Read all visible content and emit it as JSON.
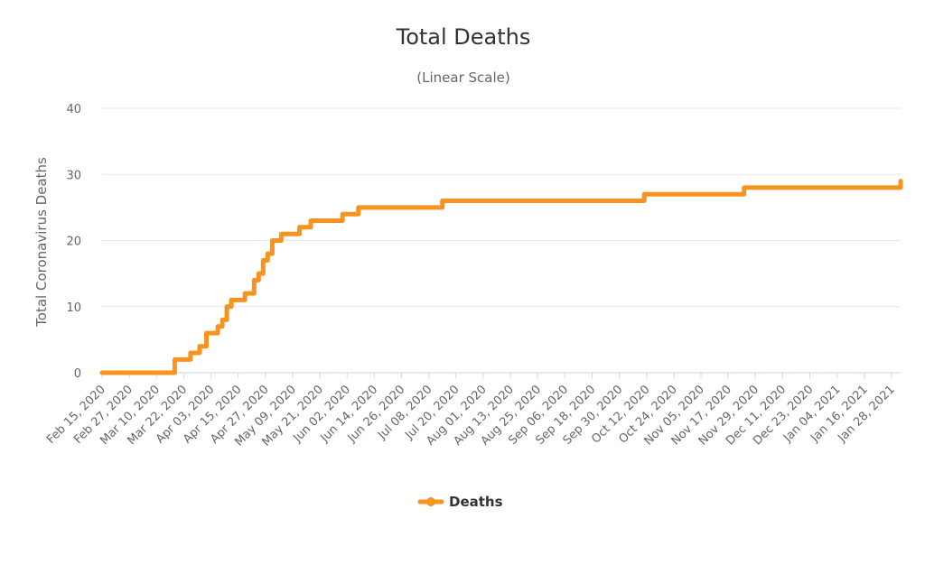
{
  "chart_data": {
    "type": "line",
    "title": "Total Deaths",
    "subtitle": "(Linear Scale)",
    "ylabel": "Total Coronavirus Deaths",
    "xlabel": "",
    "ylim": [
      0,
      40
    ],
    "yticks": [
      0,
      10,
      20,
      30,
      40
    ],
    "grid": true,
    "legend_position": "bottom-center",
    "x_tick_labels": [
      "Feb 15, 2020",
      "Feb 27, 2020",
      "Mar 10, 2020",
      "Mar 22, 2020",
      "Apr 03, 2020",
      "Apr 15, 2020",
      "Apr 27, 2020",
      "May 09, 2020",
      "May 21, 2020",
      "Jun 02, 2020",
      "Jun 14, 2020",
      "Jun 26, 2020",
      "Jul 08, 2020",
      "Jul 20, 2020",
      "Aug 01, 2020",
      "Aug 13, 2020",
      "Aug 25, 2020",
      "Sep 06, 2020",
      "Sep 18, 2020",
      "Sep 30, 2020",
      "Oct 12, 2020",
      "Oct 24, 2020",
      "Nov 05, 2020",
      "Nov 17, 2020",
      "Nov 29, 2020",
      "Dec 11, 2020",
      "Dec 23, 2020",
      "Jan 04, 2021",
      "Jan 16, 2021",
      "Jan 28, 2021"
    ],
    "series": [
      {
        "name": "Deaths",
        "color": "#f7931e",
        "x": [
          "2020-02-15",
          "2020-03-17",
          "2020-03-18",
          "2020-03-24",
          "2020-03-25",
          "2020-03-28",
          "2020-03-29",
          "2020-04-01",
          "2020-04-05",
          "2020-04-06",
          "2020-04-08",
          "2020-04-10",
          "2020-04-12",
          "2020-04-15",
          "2020-04-18",
          "2020-04-20",
          "2020-04-22",
          "2020-04-24",
          "2020-04-26",
          "2020-04-28",
          "2020-04-30",
          "2020-05-02",
          "2020-05-04",
          "2020-05-08",
          "2020-05-12",
          "2020-05-17",
          "2020-05-27",
          "2020-05-31",
          "2020-06-07",
          "2020-07-14",
          "2020-10-11",
          "2020-11-24",
          "2021-02-01"
        ],
        "y": [
          0,
          0,
          2,
          2,
          3,
          3,
          4,
          6,
          6,
          7,
          8,
          10,
          11,
          11,
          12,
          12,
          14,
          15,
          17,
          18,
          20,
          20,
          21,
          21,
          22,
          23,
          23,
          24,
          25,
          26,
          27,
          28,
          29
        ]
      }
    ]
  }
}
